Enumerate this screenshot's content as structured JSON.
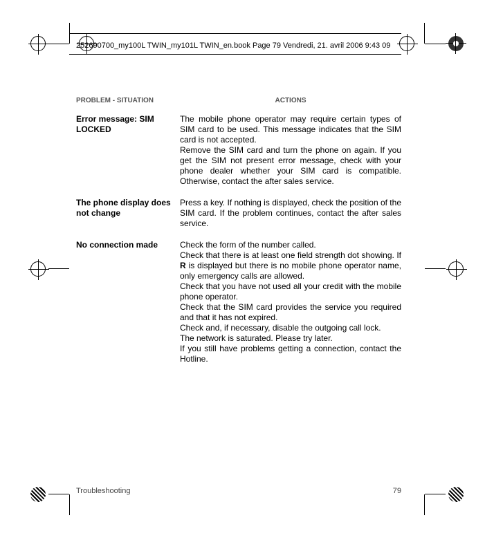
{
  "header": {
    "line": "252690700_my100L TWIN_my101L TWIN_en.book  Page 79  Vendredi, 21. avril 2006  9:43 09"
  },
  "table": {
    "headers": {
      "problem": "PROBLEM - SITUATION",
      "actions": "ACTIONS"
    },
    "rows": [
      {
        "problem": "Error message: SIM LOCKED",
        "actions": "The mobile phone operator may require certain types of SIM card to be used. This message indicates that the SIM card is not accepted.\nRemove the SIM card and turn the phone on again. If you get the SIM not present error message, check with your phone dealer whether your SIM card is compatible. Otherwise, contact the after sales service."
      },
      {
        "problem": "The phone display does not change",
        "actions": "Press a key. If nothing is displayed, check the position of the SIM card. If the problem continues, contact the after sales service."
      },
      {
        "problem": "No connection made",
        "actions": "Check the form of the number called.\nCheck that there is at least one field strength dot showing. If R is displayed but there is no mobile phone operator name, only emergency calls are allowed.\nCheck that you have not used all your credit with the mobile phone operator.\nCheck that the SIM card provides the service you required and that it has not expired.\nCheck and, if necessary, disable the outgoing call lock.\nThe network is saturated. Please try later.\nIf you still have problems getting a connection, contact the Hotline."
      }
    ]
  },
  "footer": {
    "section": "Troubleshooting",
    "page": "79"
  }
}
